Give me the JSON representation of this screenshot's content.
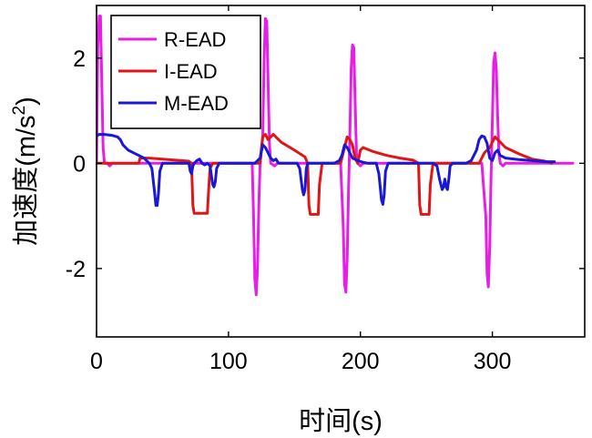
{
  "chart_data": {
    "type": "line",
    "title": "",
    "xlabel": "时间(s)",
    "ylabel_main": "加速度(m/s",
    "ylabel_sup": "2",
    "ylabel_close": ")",
    "xlim": [
      0,
      370
    ],
    "ylim": [
      -3.3,
      3.0
    ],
    "xticks": [
      0,
      100,
      200,
      300
    ],
    "xtick_labels": [
      "0",
      "100",
      "200",
      "300"
    ],
    "yticks": [
      -2,
      0,
      2
    ],
    "ytick_labels": [
      "-2",
      "0",
      "2"
    ],
    "grid": false,
    "legend_position": "top-left",
    "series": [
      {
        "name": "R-EAD",
        "color": "#e61ee6",
        "points": [
          [
            0,
            0
          ],
          [
            1,
            2.2
          ],
          [
            2,
            2.8
          ],
          [
            3,
            2.8
          ],
          [
            4,
            1.5
          ],
          [
            5,
            0.3
          ],
          [
            6,
            0
          ],
          [
            8,
            0
          ],
          [
            10,
            -0.05
          ],
          [
            12,
            0
          ],
          [
            60,
            0
          ],
          [
            118,
            0
          ],
          [
            119,
            -1.0
          ],
          [
            120,
            -2.2
          ],
          [
            121,
            -2.5
          ],
          [
            122,
            -2.0
          ],
          [
            123,
            -0.8
          ],
          [
            124,
            0
          ],
          [
            126,
            0.5
          ],
          [
            127,
            2.0
          ],
          [
            128,
            2.75
          ],
          [
            129,
            2.7
          ],
          [
            130,
            1.6
          ],
          [
            131,
            0.4
          ],
          [
            132,
            0
          ],
          [
            135,
            -0.05
          ],
          [
            137,
            0
          ],
          [
            185,
            0
          ],
          [
            187,
            -1.2
          ],
          [
            188,
            -2.3
          ],
          [
            189,
            -2.45
          ],
          [
            190,
            -1.8
          ],
          [
            191,
            -0.5
          ],
          [
            192,
            0.5
          ],
          [
            193,
            1.8
          ],
          [
            194,
            2.25
          ],
          [
            195,
            2.2
          ],
          [
            196,
            1.2
          ],
          [
            197,
            0.2
          ],
          [
            198,
            0
          ],
          [
            200,
            -0.05
          ],
          [
            202,
            0
          ],
          [
            292,
            0
          ],
          [
            295,
            -1.0
          ],
          [
            296,
            -2.1
          ],
          [
            297,
            -2.35
          ],
          [
            298,
            -1.6
          ],
          [
            299,
            -0.3
          ],
          [
            300,
            0.8
          ],
          [
            301,
            1.9
          ],
          [
            302,
            2.1
          ],
          [
            303,
            1.8
          ],
          [
            304,
            0.9
          ],
          [
            305,
            0.2
          ],
          [
            306,
            0
          ],
          [
            308,
            -0.05
          ],
          [
            310,
            0
          ],
          [
            361,
            0
          ]
        ]
      },
      {
        "name": "I-EAD",
        "color": "#e01515",
        "points": [
          [
            0,
            0
          ],
          [
            20,
            0
          ],
          [
            32,
            0
          ],
          [
            33,
            0.1
          ],
          [
            40,
            0.1
          ],
          [
            50,
            0.08
          ],
          [
            60,
            0.06
          ],
          [
            70,
            0.04
          ],
          [
            72,
            0
          ],
          [
            73,
            -0.8
          ],
          [
            74,
            -0.95
          ],
          [
            84,
            -0.95
          ],
          [
            85,
            -0.5
          ],
          [
            86,
            -0.1
          ],
          [
            88,
            0
          ],
          [
            120,
            0
          ],
          [
            124,
            0
          ],
          [
            125,
            0.3
          ],
          [
            126,
            0.5
          ],
          [
            128,
            0.55
          ],
          [
            130,
            0.45
          ],
          [
            132,
            0.5
          ],
          [
            134,
            0.55
          ],
          [
            140,
            0.4
          ],
          [
            150,
            0.25
          ],
          [
            158,
            0.12
          ],
          [
            160,
            0
          ],
          [
            161,
            -0.8
          ],
          [
            162,
            -0.97
          ],
          [
            168,
            -0.97
          ],
          [
            169,
            -0.4
          ],
          [
            171,
            0
          ],
          [
            185,
            0
          ],
          [
            188,
            0.3
          ],
          [
            190,
            0.5
          ],
          [
            192,
            0.45
          ],
          [
            194,
            0.35
          ],
          [
            196,
            0.1
          ],
          [
            198,
            0
          ],
          [
            200,
            0.25
          ],
          [
            202,
            0.3
          ],
          [
            210,
            0.22
          ],
          [
            220,
            0.15
          ],
          [
            230,
            0.1
          ],
          [
            240,
            0.06
          ],
          [
            244,
            0
          ],
          [
            245,
            -0.8
          ],
          [
            246,
            -0.97
          ],
          [
            252,
            -0.97
          ],
          [
            253,
            -0.4
          ],
          [
            255,
            0
          ],
          [
            290,
            0
          ],
          [
            294,
            0.2
          ],
          [
            298,
            0.3
          ],
          [
            300,
            0.4
          ],
          [
            302,
            0.5
          ],
          [
            304,
            0.45
          ],
          [
            310,
            0.3
          ],
          [
            320,
            0.18
          ],
          [
            330,
            0.08
          ],
          [
            340,
            0.04
          ],
          [
            345,
            0
          ]
        ]
      },
      {
        "name": "M-EAD",
        "color": "#1818d6",
        "points": [
          [
            0,
            0.52
          ],
          [
            2,
            0.55
          ],
          [
            6,
            0.55
          ],
          [
            12,
            0.53
          ],
          [
            16,
            0.5
          ],
          [
            18,
            0.45
          ],
          [
            20,
            0.35
          ],
          [
            24,
            0.25
          ],
          [
            28,
            0.2
          ],
          [
            32,
            0.15
          ],
          [
            36,
            0.1
          ],
          [
            38,
            0.05
          ],
          [
            40,
            0
          ],
          [
            42,
            -0.1
          ],
          [
            44,
            -0.55
          ],
          [
            45,
            -0.8
          ],
          [
            46,
            -0.8
          ],
          [
            47,
            -0.55
          ],
          [
            48,
            -0.15
          ],
          [
            50,
            0
          ],
          [
            60,
            0
          ],
          [
            70,
            0
          ],
          [
            71,
            -0.15
          ],
          [
            72,
            -0.2
          ],
          [
            73,
            -0.05
          ],
          [
            74,
            0
          ],
          [
            76,
            0.05
          ],
          [
            78,
            0.08
          ],
          [
            80,
            0
          ],
          [
            82,
            -0.03
          ],
          [
            84,
            0
          ],
          [
            86,
            -0.05
          ],
          [
            88,
            -0.4
          ],
          [
            89,
            -0.45
          ],
          [
            90,
            -0.35
          ],
          [
            91,
            -0.1
          ],
          [
            93,
            0
          ],
          [
            120,
            0
          ],
          [
            124,
            0.1
          ],
          [
            126,
            0.35
          ],
          [
            128,
            0.3
          ],
          [
            130,
            0.2
          ],
          [
            132,
            0.1
          ],
          [
            134,
            0.05
          ],
          [
            136,
            0.08
          ],
          [
            138,
            0
          ],
          [
            148,
            0
          ],
          [
            152,
            0
          ],
          [
            154,
            -0.1
          ],
          [
            156,
            -0.5
          ],
          [
            157,
            -0.6
          ],
          [
            158,
            -0.5
          ],
          [
            159,
            -0.1
          ],
          [
            160,
            0
          ],
          [
            180,
            0
          ],
          [
            184,
            0.05
          ],
          [
            186,
            0.15
          ],
          [
            188,
            0.35
          ],
          [
            190,
            0.3
          ],
          [
            192,
            0.2
          ],
          [
            194,
            0.1
          ],
          [
            198,
            0.05
          ],
          [
            202,
            0.02
          ],
          [
            206,
            0
          ],
          [
            212,
            0
          ],
          [
            214,
            -0.2
          ],
          [
            216,
            -0.7
          ],
          [
            217,
            -0.78
          ],
          [
            218,
            -0.6
          ],
          [
            219,
            -0.15
          ],
          [
            221,
            0
          ],
          [
            255,
            0
          ],
          [
            258,
            -0.05
          ],
          [
            260,
            -0.3
          ],
          [
            262,
            -0.5
          ],
          [
            263,
            -0.45
          ],
          [
            264,
            -0.3
          ],
          [
            265,
            -0.45
          ],
          [
            266,
            -0.5
          ],
          [
            267,
            -0.3
          ],
          [
            268,
            -0.05
          ],
          [
            270,
            0
          ],
          [
            280,
            0
          ],
          [
            284,
            0.05
          ],
          [
            288,
            0.25
          ],
          [
            290,
            0.45
          ],
          [
            292,
            0.52
          ],
          [
            294,
            0.5
          ],
          [
            296,
            0.38
          ],
          [
            298,
            0.1
          ],
          [
            300,
            0.05
          ],
          [
            302,
            0.2
          ],
          [
            304,
            0.25
          ],
          [
            306,
            0.15
          ],
          [
            310,
            0.1
          ],
          [
            320,
            0.07
          ],
          [
            330,
            0.05
          ],
          [
            340,
            0.03
          ],
          [
            347,
            0.03
          ]
        ]
      }
    ]
  }
}
